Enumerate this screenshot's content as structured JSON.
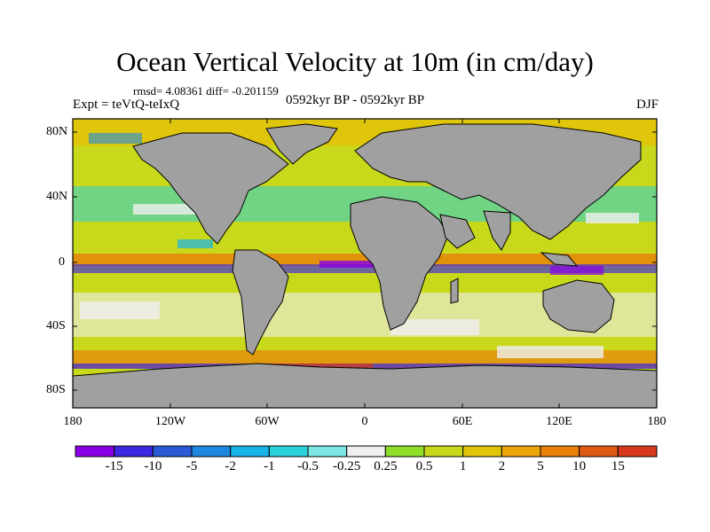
{
  "title": "Ocean Vertical Velocity at 10m (in cm/day)",
  "stats": "rmsd= 4.08361 diff= -0.201159",
  "experiment": "Expt = teVtQ-teIxQ",
  "period": "0592kyr BP - 0592kyr BP",
  "season": "DJF",
  "lat_labels": [
    "80N",
    "40N",
    "0",
    "40S",
    "80S"
  ],
  "lon_labels": [
    "180",
    "120W",
    "60W",
    "0",
    "60E",
    "120E",
    "180"
  ],
  "colorbar": {
    "colors": [
      "#8a00e6",
      "#3c28e0",
      "#2a5ad8",
      "#1e88e0",
      "#18b4e8",
      "#2ad2dc",
      "#7ce6e6",
      "#efefef",
      "#8ede2a",
      "#c8d81a",
      "#e0c60a",
      "#eca60a",
      "#e8800a",
      "#e05a14",
      "#d63a1a"
    ],
    "labels": [
      "-15",
      "-10",
      "-5",
      "-2",
      "-1",
      "-0.5",
      "-0.25",
      "0.25",
      "0.5",
      "1",
      "2",
      "5",
      "10",
      "15"
    ]
  },
  "map_colors": {
    "land": "#a0a0a0",
    "coast": "#000000"
  }
}
